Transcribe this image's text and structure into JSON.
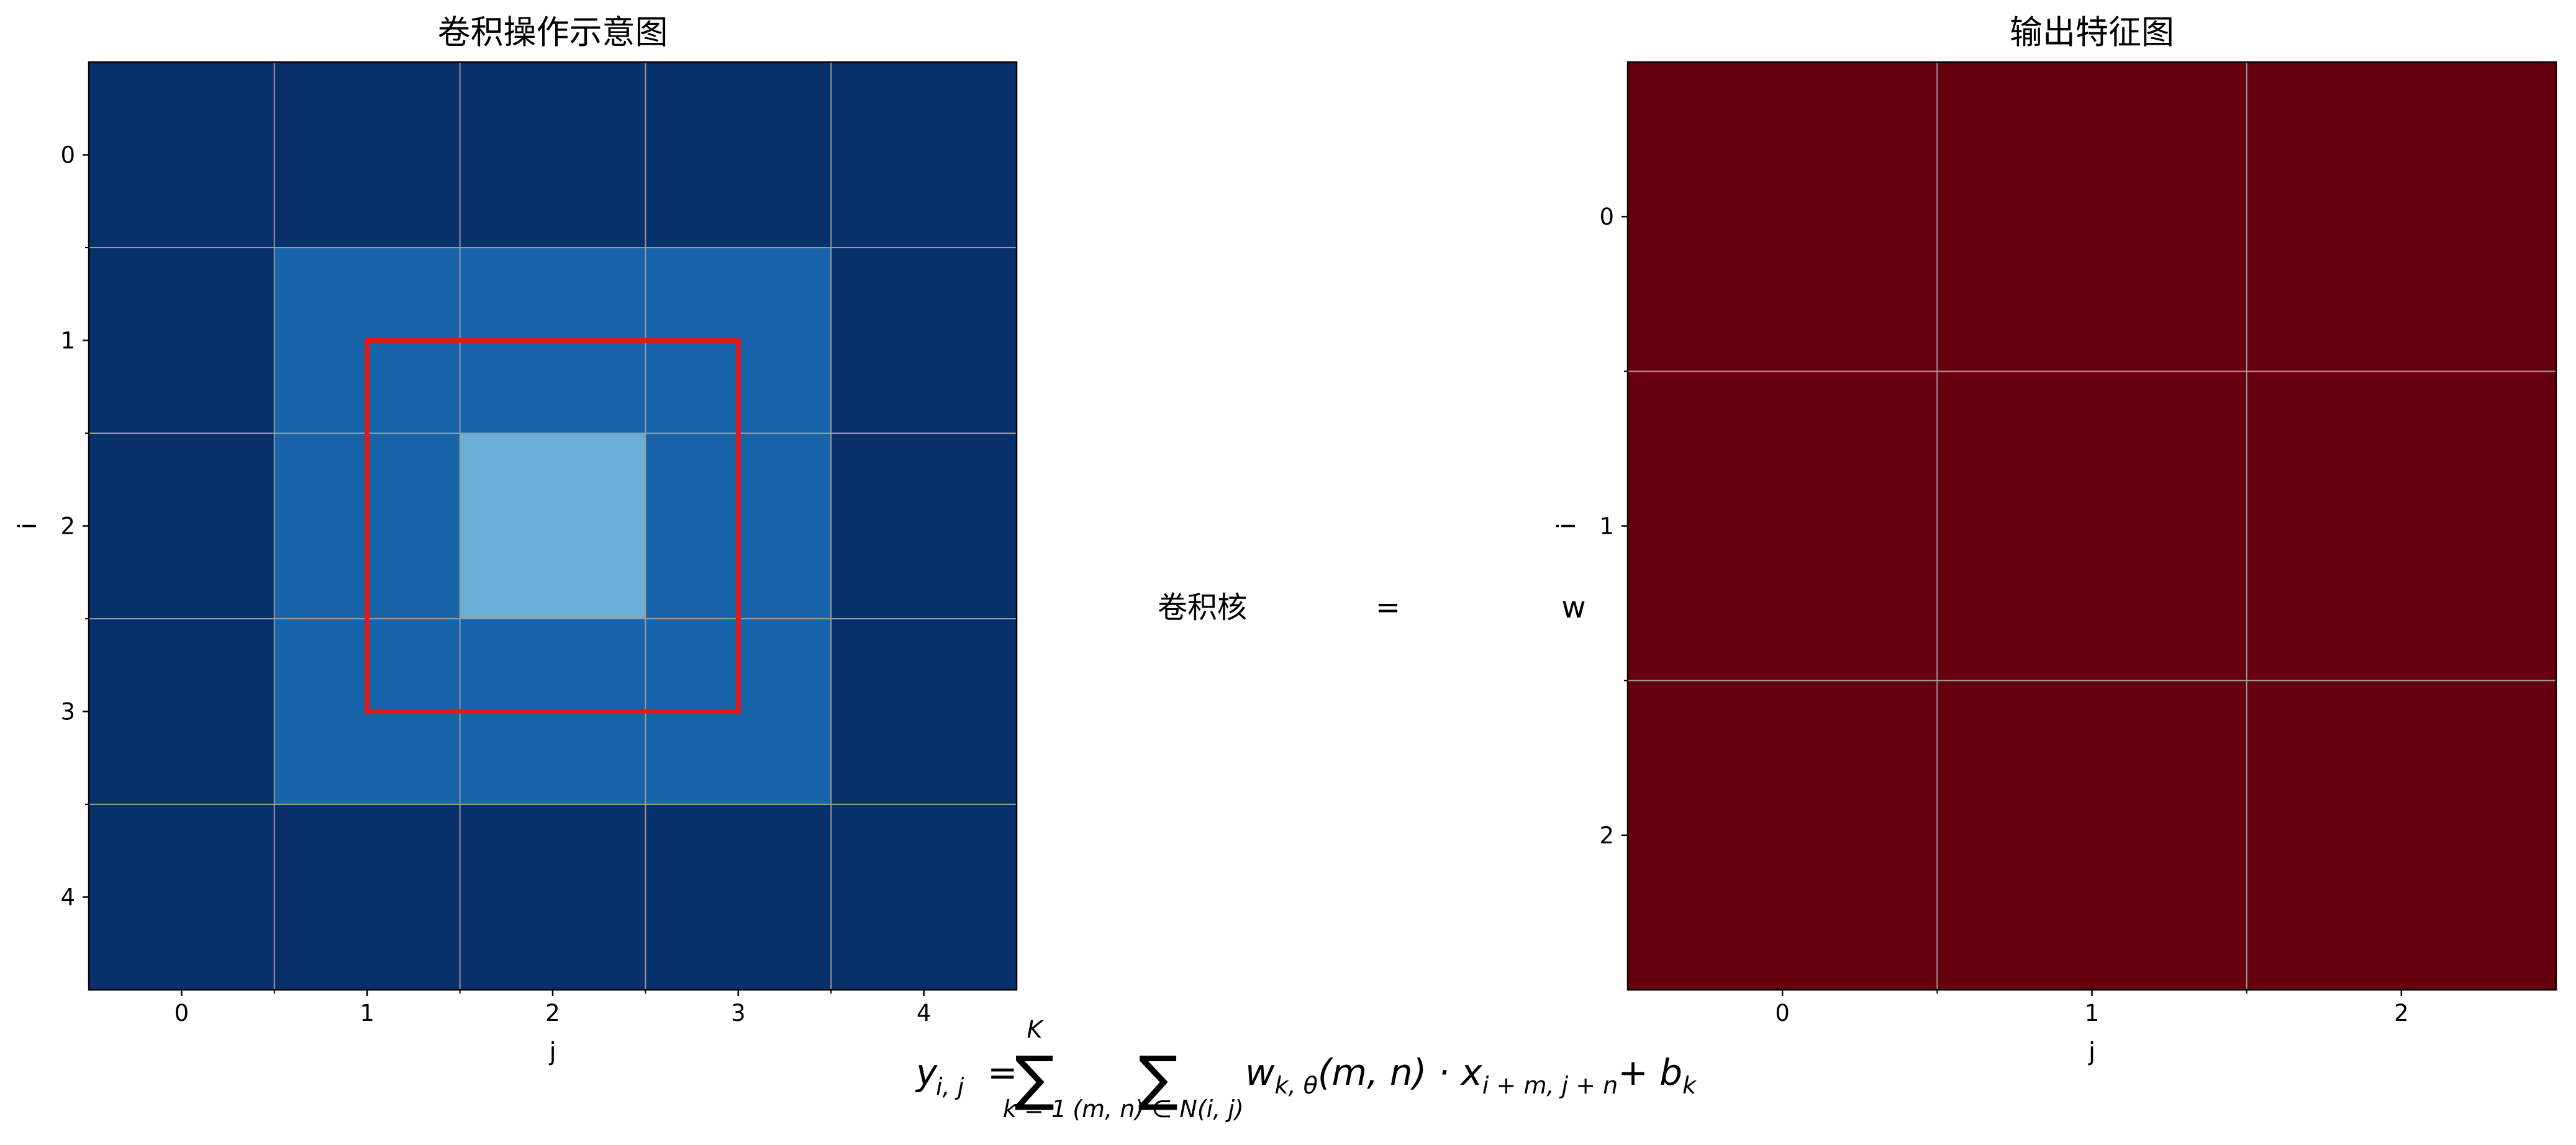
{
  "chart_data": [
    {
      "type": "heatmap",
      "title": "卷积操作示意图",
      "cmap": "Blues",
      "clim": [
        0,
        1
      ],
      "values": [
        [
          1,
          1,
          1,
          1,
          1
        ],
        [
          1,
          0.8,
          0.8,
          0.8,
          1
        ],
        [
          1,
          0.8,
          0.5,
          0.8,
          1
        ],
        [
          1,
          0.8,
          0.8,
          0.8,
          1
        ],
        [
          1,
          1,
          1,
          1,
          1
        ]
      ],
      "xlabel": "j",
      "ylabel": "i",
      "xlim": [
        -0.5,
        4.5
      ],
      "ylim": [
        4.5,
        -0.5
      ],
      "xticks": [
        0,
        1,
        2,
        3,
        4
      ],
      "yticks": [
        0,
        1,
        2,
        3,
        4
      ],
      "grid_ticks": [
        0.5,
        1.5,
        2.5,
        3.5
      ],
      "grid": true,
      "highlight": {
        "x": [
          1,
          3
        ],
        "y": [
          1,
          3
        ],
        "color": "#e31a1c"
      }
    },
    {
      "type": "heatmap",
      "title": "输出特征图",
      "cmap": "Reds",
      "clim": [
        0,
        1
      ],
      "values": [
        [
          1,
          1,
          1
        ],
        [
          1,
          1,
          1
        ],
        [
          1,
          1,
          1
        ]
      ],
      "xlabel": "j",
      "ylabel": "i",
      "xlim": [
        -0.5,
        2.5
      ],
      "ylim": [
        2.5,
        -0.5
      ],
      "xticks": [
        0,
        1,
        2
      ],
      "yticks": [
        0,
        1,
        2
      ],
      "grid_ticks": [
        0.5,
        1.5
      ],
      "grid": true
    }
  ],
  "middle_labels": [
    "卷积核",
    "=",
    "w"
  ],
  "formula": {
    "sum_symbol": "∑",
    "y": "y",
    "y_sub": "i, j",
    "eq": "=",
    "sum1_upper": "K",
    "sum1_lower": "k = 1",
    "sum2_lower": "(m, n) ∈ N(i, j)",
    "w": "w",
    "w_sub": "k, θ",
    "mid": "(m, n) · x",
    "x_sub": "i + m, j + n",
    "plus": "+ b",
    "b_sub": "k"
  }
}
